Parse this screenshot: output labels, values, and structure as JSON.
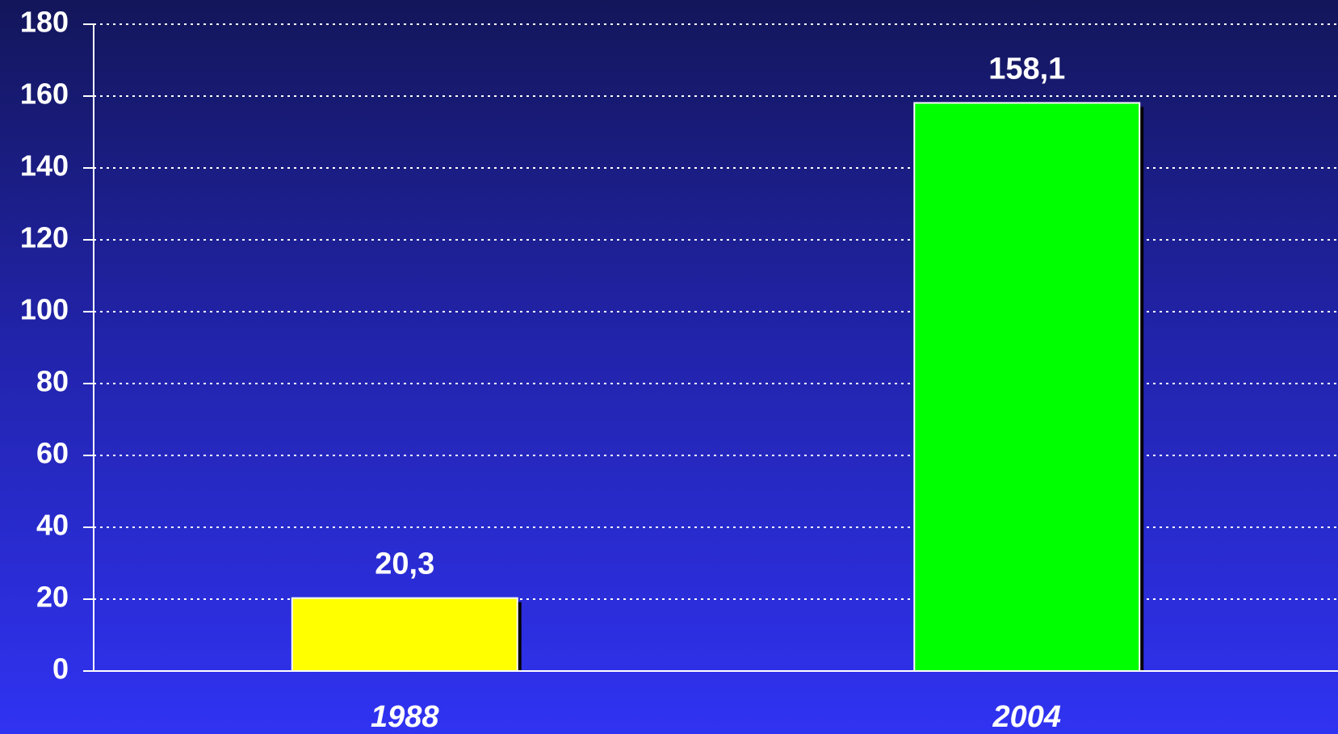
{
  "chart_data": {
    "type": "bar",
    "categories": [
      "1988",
      "2004"
    ],
    "values": [
      20.3,
      158.1
    ],
    "value_labels": [
      "20,3",
      "158,1"
    ],
    "colors": [
      "#ffff00",
      "#00ff00"
    ],
    "ylim": [
      0,
      180
    ],
    "yticks": [
      0,
      20,
      40,
      60,
      80,
      100,
      120,
      140,
      160,
      180
    ],
    "grid": true
  }
}
